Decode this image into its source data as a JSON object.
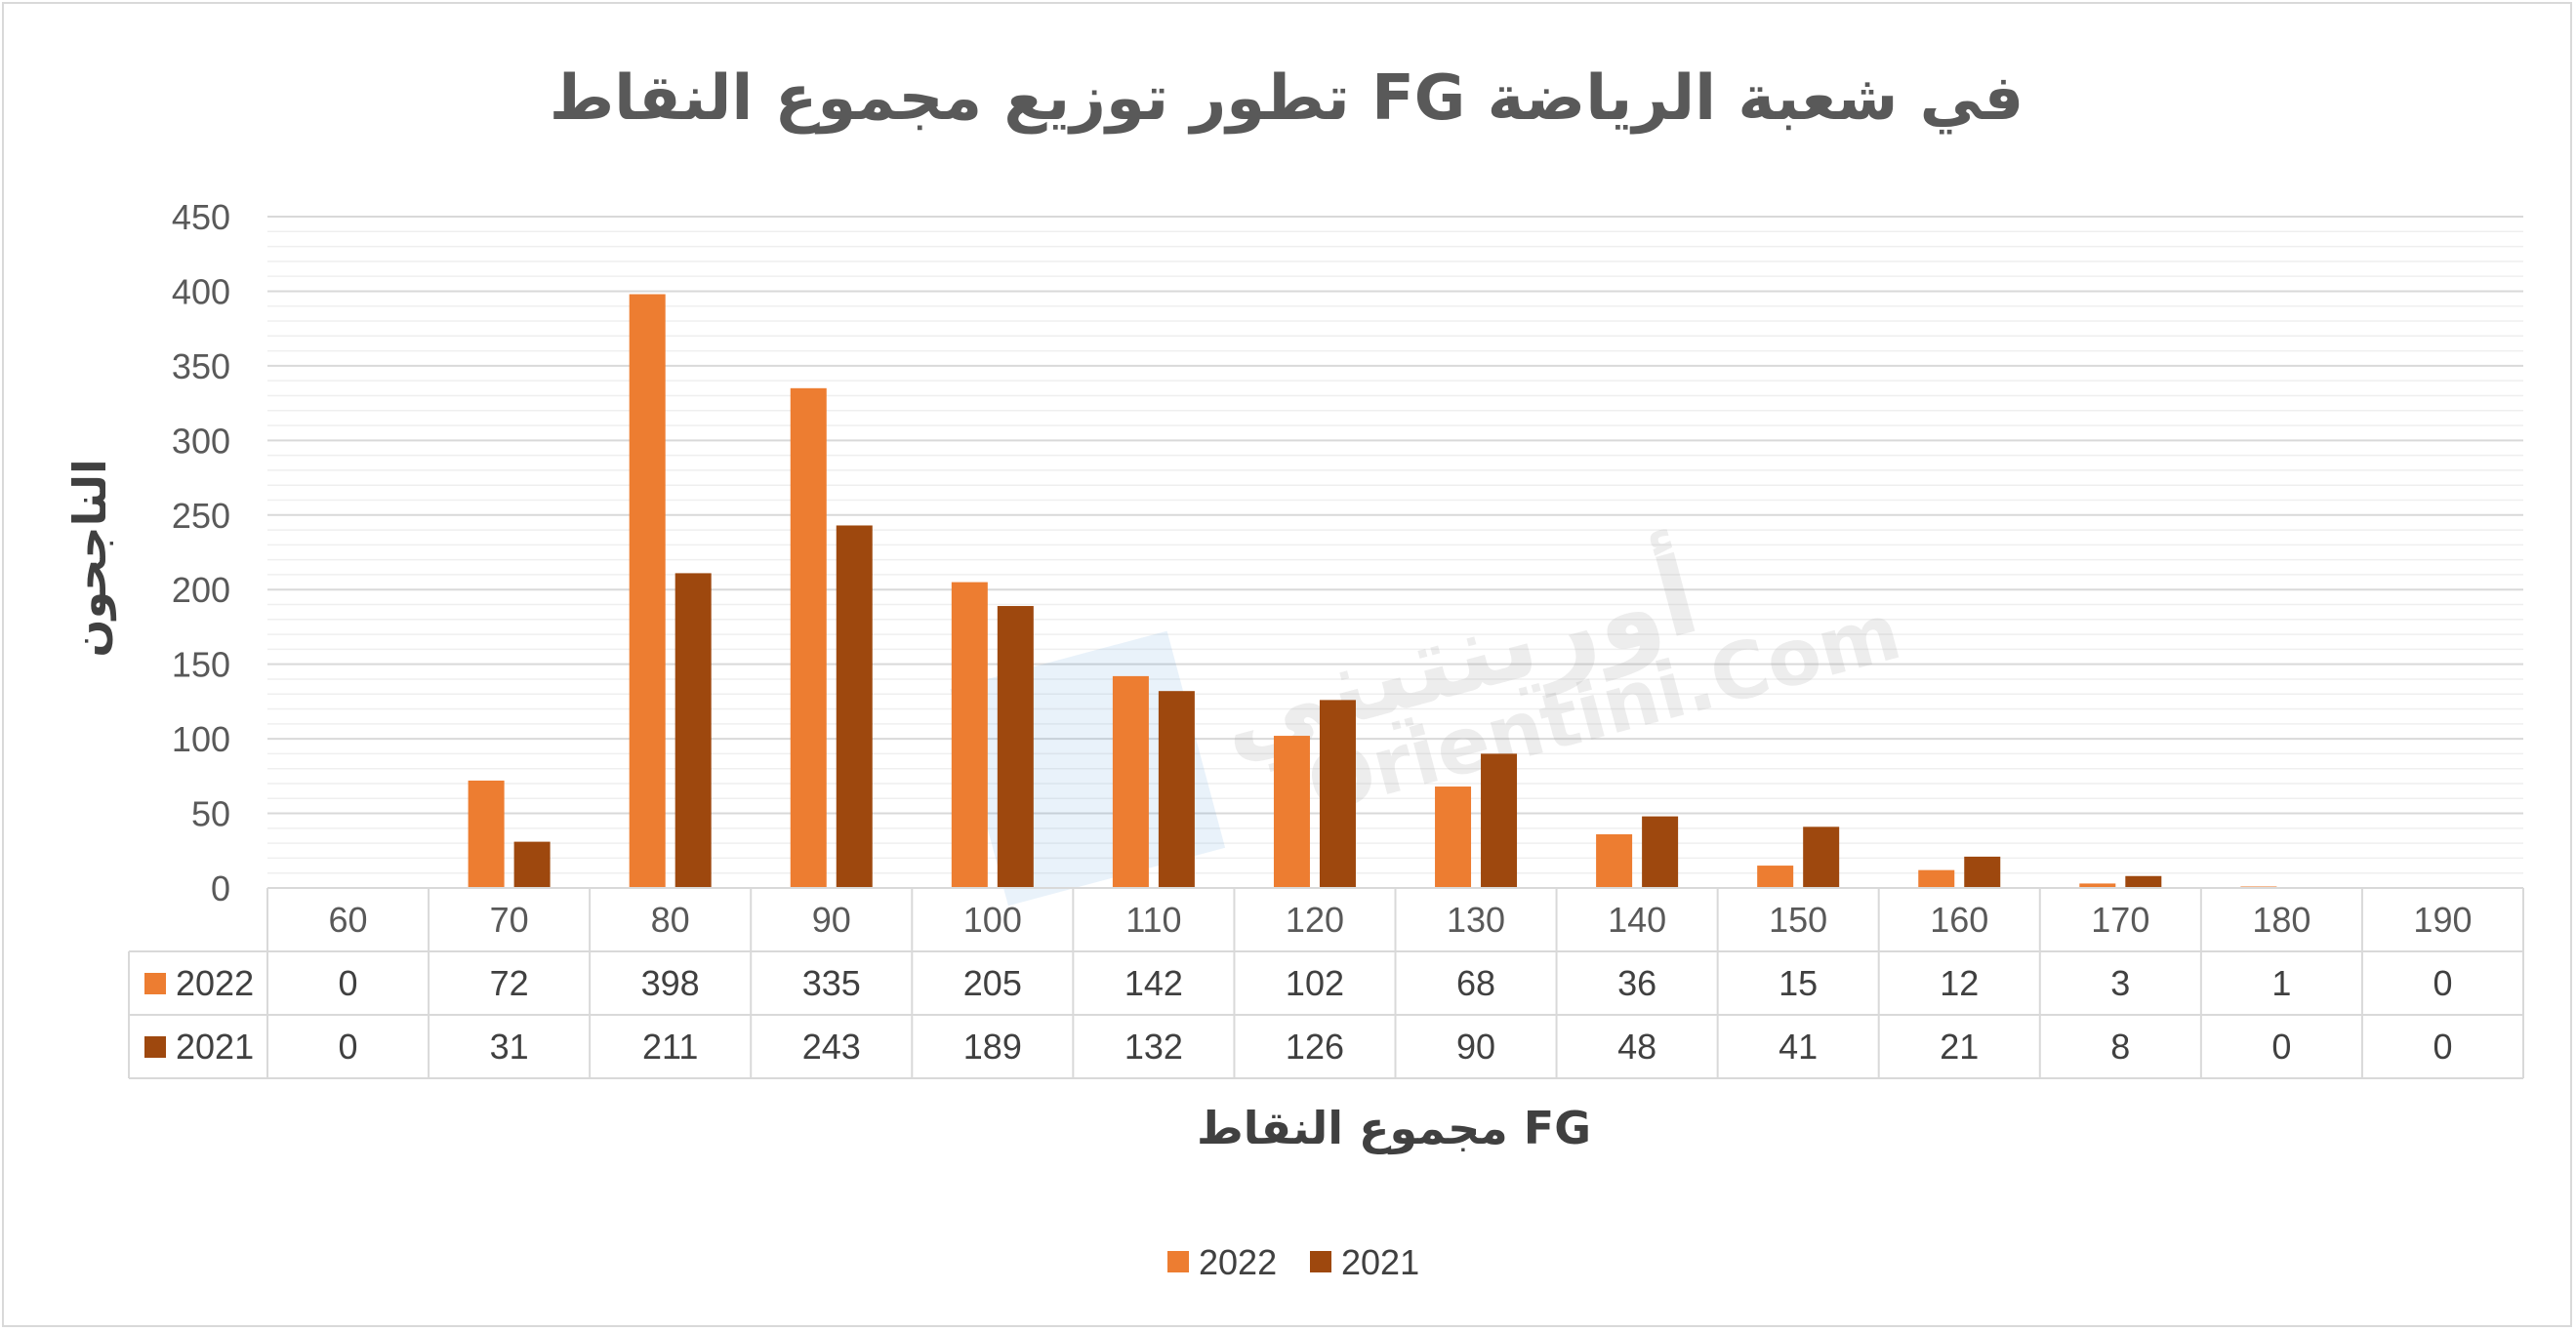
{
  "chart_data": {
    "type": "bar",
    "title": "تطور توزيع مجموع النقاط  FG  في شعبة الرياضة",
    "xlabel": "FG مجموع النقاط",
    "ylabel": "الناجحون",
    "categories": [
      "60",
      "70",
      "80",
      "90",
      "100",
      "110",
      "120",
      "130",
      "140",
      "150",
      "160",
      "170",
      "180",
      "190"
    ],
    "series": [
      {
        "name": "2022",
        "color": "#ed7d31",
        "values": [
          0,
          72,
          398,
          335,
          205,
          142,
          102,
          68,
          36,
          15,
          12,
          3,
          1,
          0
        ]
      },
      {
        "name": "2021",
        "color": "#9e480e",
        "values": [
          0,
          31,
          211,
          243,
          189,
          132,
          126,
          90,
          48,
          41,
          21,
          8,
          0,
          0
        ]
      }
    ],
    "ylim": [
      0,
      450
    ],
    "yticks": [
      0,
      50,
      100,
      150,
      200,
      250,
      300,
      350,
      400,
      450
    ],
    "grid": true,
    "data_table": true,
    "legend_position": "bottom"
  },
  "watermark": {
    "line1": "أورينتيني",
    "line2": "Orientini.Com"
  }
}
